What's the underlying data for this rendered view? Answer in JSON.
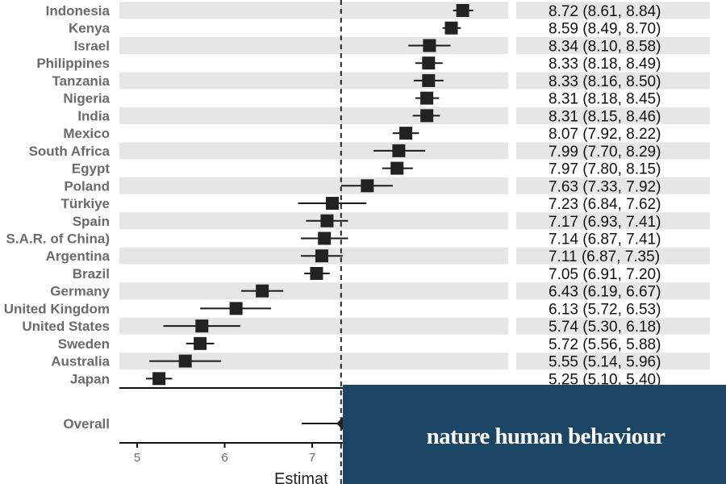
{
  "chart_data": {
    "type": "forest",
    "reference_line": 7.33,
    "xlim": [
      4.8,
      8.95
    ],
    "xticks": [
      5,
      6,
      7
    ],
    "xlabel": "Estimat",
    "rows": [
      {
        "label": "Indonesia",
        "est": 8.72,
        "lo": 8.61,
        "hi": 8.84,
        "text": "8.72 (8.61, 8.84)"
      },
      {
        "label": "Kenya",
        "est": 8.59,
        "lo": 8.49,
        "hi": 8.7,
        "text": "8.59 (8.49, 8.70)"
      },
      {
        "label": "Israel",
        "est": 8.34,
        "lo": 8.1,
        "hi": 8.58,
        "text": "8.34 (8.10, 8.58)"
      },
      {
        "label": "Philippines",
        "est": 8.33,
        "lo": 8.18,
        "hi": 8.49,
        "text": "8.33 (8.18, 8.49)"
      },
      {
        "label": "Tanzania",
        "est": 8.33,
        "lo": 8.16,
        "hi": 8.5,
        "text": "8.33 (8.16, 8.50)"
      },
      {
        "label": "Nigeria",
        "est": 8.31,
        "lo": 8.18,
        "hi": 8.45,
        "text": "8.31 (8.18, 8.45)"
      },
      {
        "label": "India",
        "est": 8.31,
        "lo": 8.15,
        "hi": 8.46,
        "text": "8.31 (8.15, 8.46)"
      },
      {
        "label": "Mexico",
        "est": 8.07,
        "lo": 7.92,
        "hi": 8.22,
        "text": "8.07 (7.92, 8.22)"
      },
      {
        "label": "South Africa",
        "est": 7.99,
        "lo": 7.7,
        "hi": 8.29,
        "text": "7.99 (7.70, 8.29)"
      },
      {
        "label": "Egypt",
        "est": 7.97,
        "lo": 7.8,
        "hi": 8.15,
        "text": "7.97 (7.80, 8.15)"
      },
      {
        "label": "Poland",
        "est": 7.63,
        "lo": 7.33,
        "hi": 7.92,
        "text": "7.63 (7.33, 7.92)"
      },
      {
        "label": "Türkiye",
        "est": 7.23,
        "lo": 6.84,
        "hi": 7.62,
        "text": "7.23 (6.84, 7.62)"
      },
      {
        "label": "Spain",
        "est": 7.17,
        "lo": 6.93,
        "hi": 7.41,
        "text": "7.17 (6.93, 7.41)"
      },
      {
        "label": "S.A.R. of China)",
        "est": 7.14,
        "lo": 6.87,
        "hi": 7.41,
        "text": "7.14 (6.87, 7.41)"
      },
      {
        "label": "Argentina",
        "est": 7.11,
        "lo": 6.87,
        "hi": 7.35,
        "text": "7.11 (6.87, 7.35)"
      },
      {
        "label": "Brazil",
        "est": 7.05,
        "lo": 6.91,
        "hi": 7.2,
        "text": "7.05 (6.91, 7.20)"
      },
      {
        "label": "Germany",
        "est": 6.43,
        "lo": 6.19,
        "hi": 6.67,
        "text": "6.43 (6.19, 6.67)"
      },
      {
        "label": "United Kingdom",
        "est": 6.13,
        "lo": 5.72,
        "hi": 6.53,
        "text": "6.13 (5.72, 6.53)"
      },
      {
        "label": "United States",
        "est": 5.74,
        "lo": 5.3,
        "hi": 6.18,
        "text": "5.74 (5.30, 6.18)"
      },
      {
        "label": "Sweden",
        "est": 5.72,
        "lo": 5.56,
        "hi": 5.88,
        "text": "5.72 (5.56, 5.88)"
      },
      {
        "label": "Australia",
        "est": 5.55,
        "lo": 5.14,
        "hi": 5.96,
        "text": "5.55 (5.14, 5.96)"
      },
      {
        "label": "Japan",
        "est": 5.25,
        "lo": 5.1,
        "hi": 5.4,
        "text": "5.25 (5.10, 5.40)"
      }
    ],
    "overall": {
      "label": "Overall",
      "lo": 6.88
    }
  },
  "banner": {
    "text": "nature human behaviour",
    "color": "#1b4565"
  }
}
